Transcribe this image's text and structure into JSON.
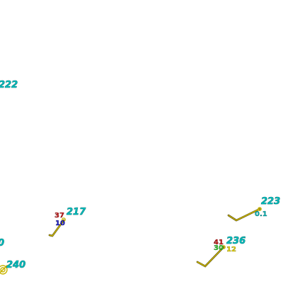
{
  "map": {
    "stations": [
      {
        "id": "222"
      },
      {
        "id": "217",
        "temp": "37",
        "dewpoint": "10"
      },
      {
        "id": "223",
        "extra": "0.1"
      },
      {
        "id": "0"
      },
      {
        "id": "236",
        "temp": "41",
        "dewpoint": "30",
        "extra": "12"
      },
      {
        "id": "240"
      }
    ],
    "colors": {
      "station_id": "#00b8b8",
      "temperature": "#cc1a1a",
      "dewpoint": "#1a1acc",
      "dewpoint_alt": "#33cc33",
      "extra_cyan": "#00b8b8",
      "extra_yellow": "#f0e000",
      "wind_barb": "#c8b400"
    }
  }
}
